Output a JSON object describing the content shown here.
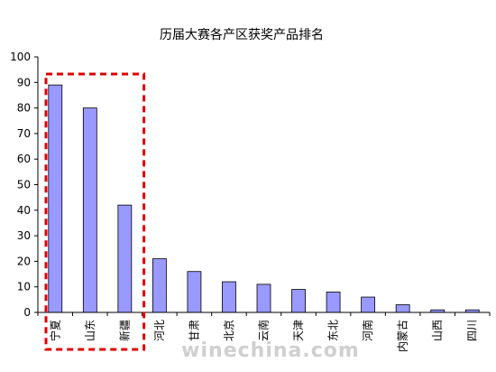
{
  "chart_data": {
    "type": "bar",
    "title": "历届大赛各产区获奖产品排名",
    "categories": [
      "宁夏",
      "山东",
      "新疆",
      "河北",
      "甘肃",
      "北京",
      "云南",
      "天津",
      "东北",
      "河南",
      "内蒙古",
      "山西",
      "四川"
    ],
    "values": [
      89,
      80,
      42,
      21,
      16,
      12,
      11,
      9,
      8,
      6,
      3,
      1,
      1
    ],
    "ylim": [
      0,
      100
    ],
    "yticks": [
      0,
      10,
      20,
      30,
      40,
      50,
      60,
      70,
      80,
      90,
      100
    ],
    "grid": false,
    "bar_color": "#9999ff",
    "highlight": {
      "color": "#e00000",
      "categories": [
        "宁夏",
        "山东",
        "新疆"
      ]
    }
  },
  "watermark": "winechina.com"
}
